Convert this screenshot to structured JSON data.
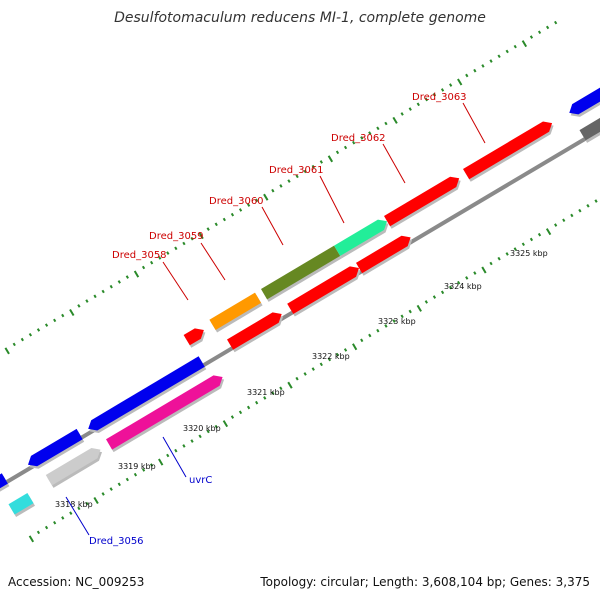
{
  "title": "Desulfotomaculum reducens MI-1, complete genome",
  "footer": {
    "accession": "Accession: NC_009253",
    "summary": "Topology: circular; Length: 3,608,104 bp; Genes: 3,375"
  },
  "ticks": [
    "3318 kbp",
    "3319 kbp",
    "3320 kbp",
    "3321 kbp",
    "3322 kbp",
    "3323 kbp",
    "3324 kbp",
    "3325 kbp"
  ],
  "labels": {
    "dred_3058": "Dred_3058",
    "dred_3059": "Dred_3059",
    "dred_3060": "Dred_3060",
    "dred_3061": "Dred_3061",
    "dred_3062": "Dred_3062",
    "dred_3063": "Dred_3063",
    "uvrc": "uvrC",
    "dred_3056": "Dred_3056"
  },
  "colors": {
    "backbone": "#8a8a8a",
    "tick": "#2a8a2a",
    "label_red": "#cc0000",
    "label_blue": "#0000cc",
    "red": "#ff0000",
    "blue": "#0000ee",
    "magenta": "#ee1199",
    "gray": "#cccccc",
    "dark_gray": "#666666",
    "cyan": "#33dddd",
    "orange": "#ff9900",
    "olive": "#668822",
    "mint": "#22ee99"
  }
}
